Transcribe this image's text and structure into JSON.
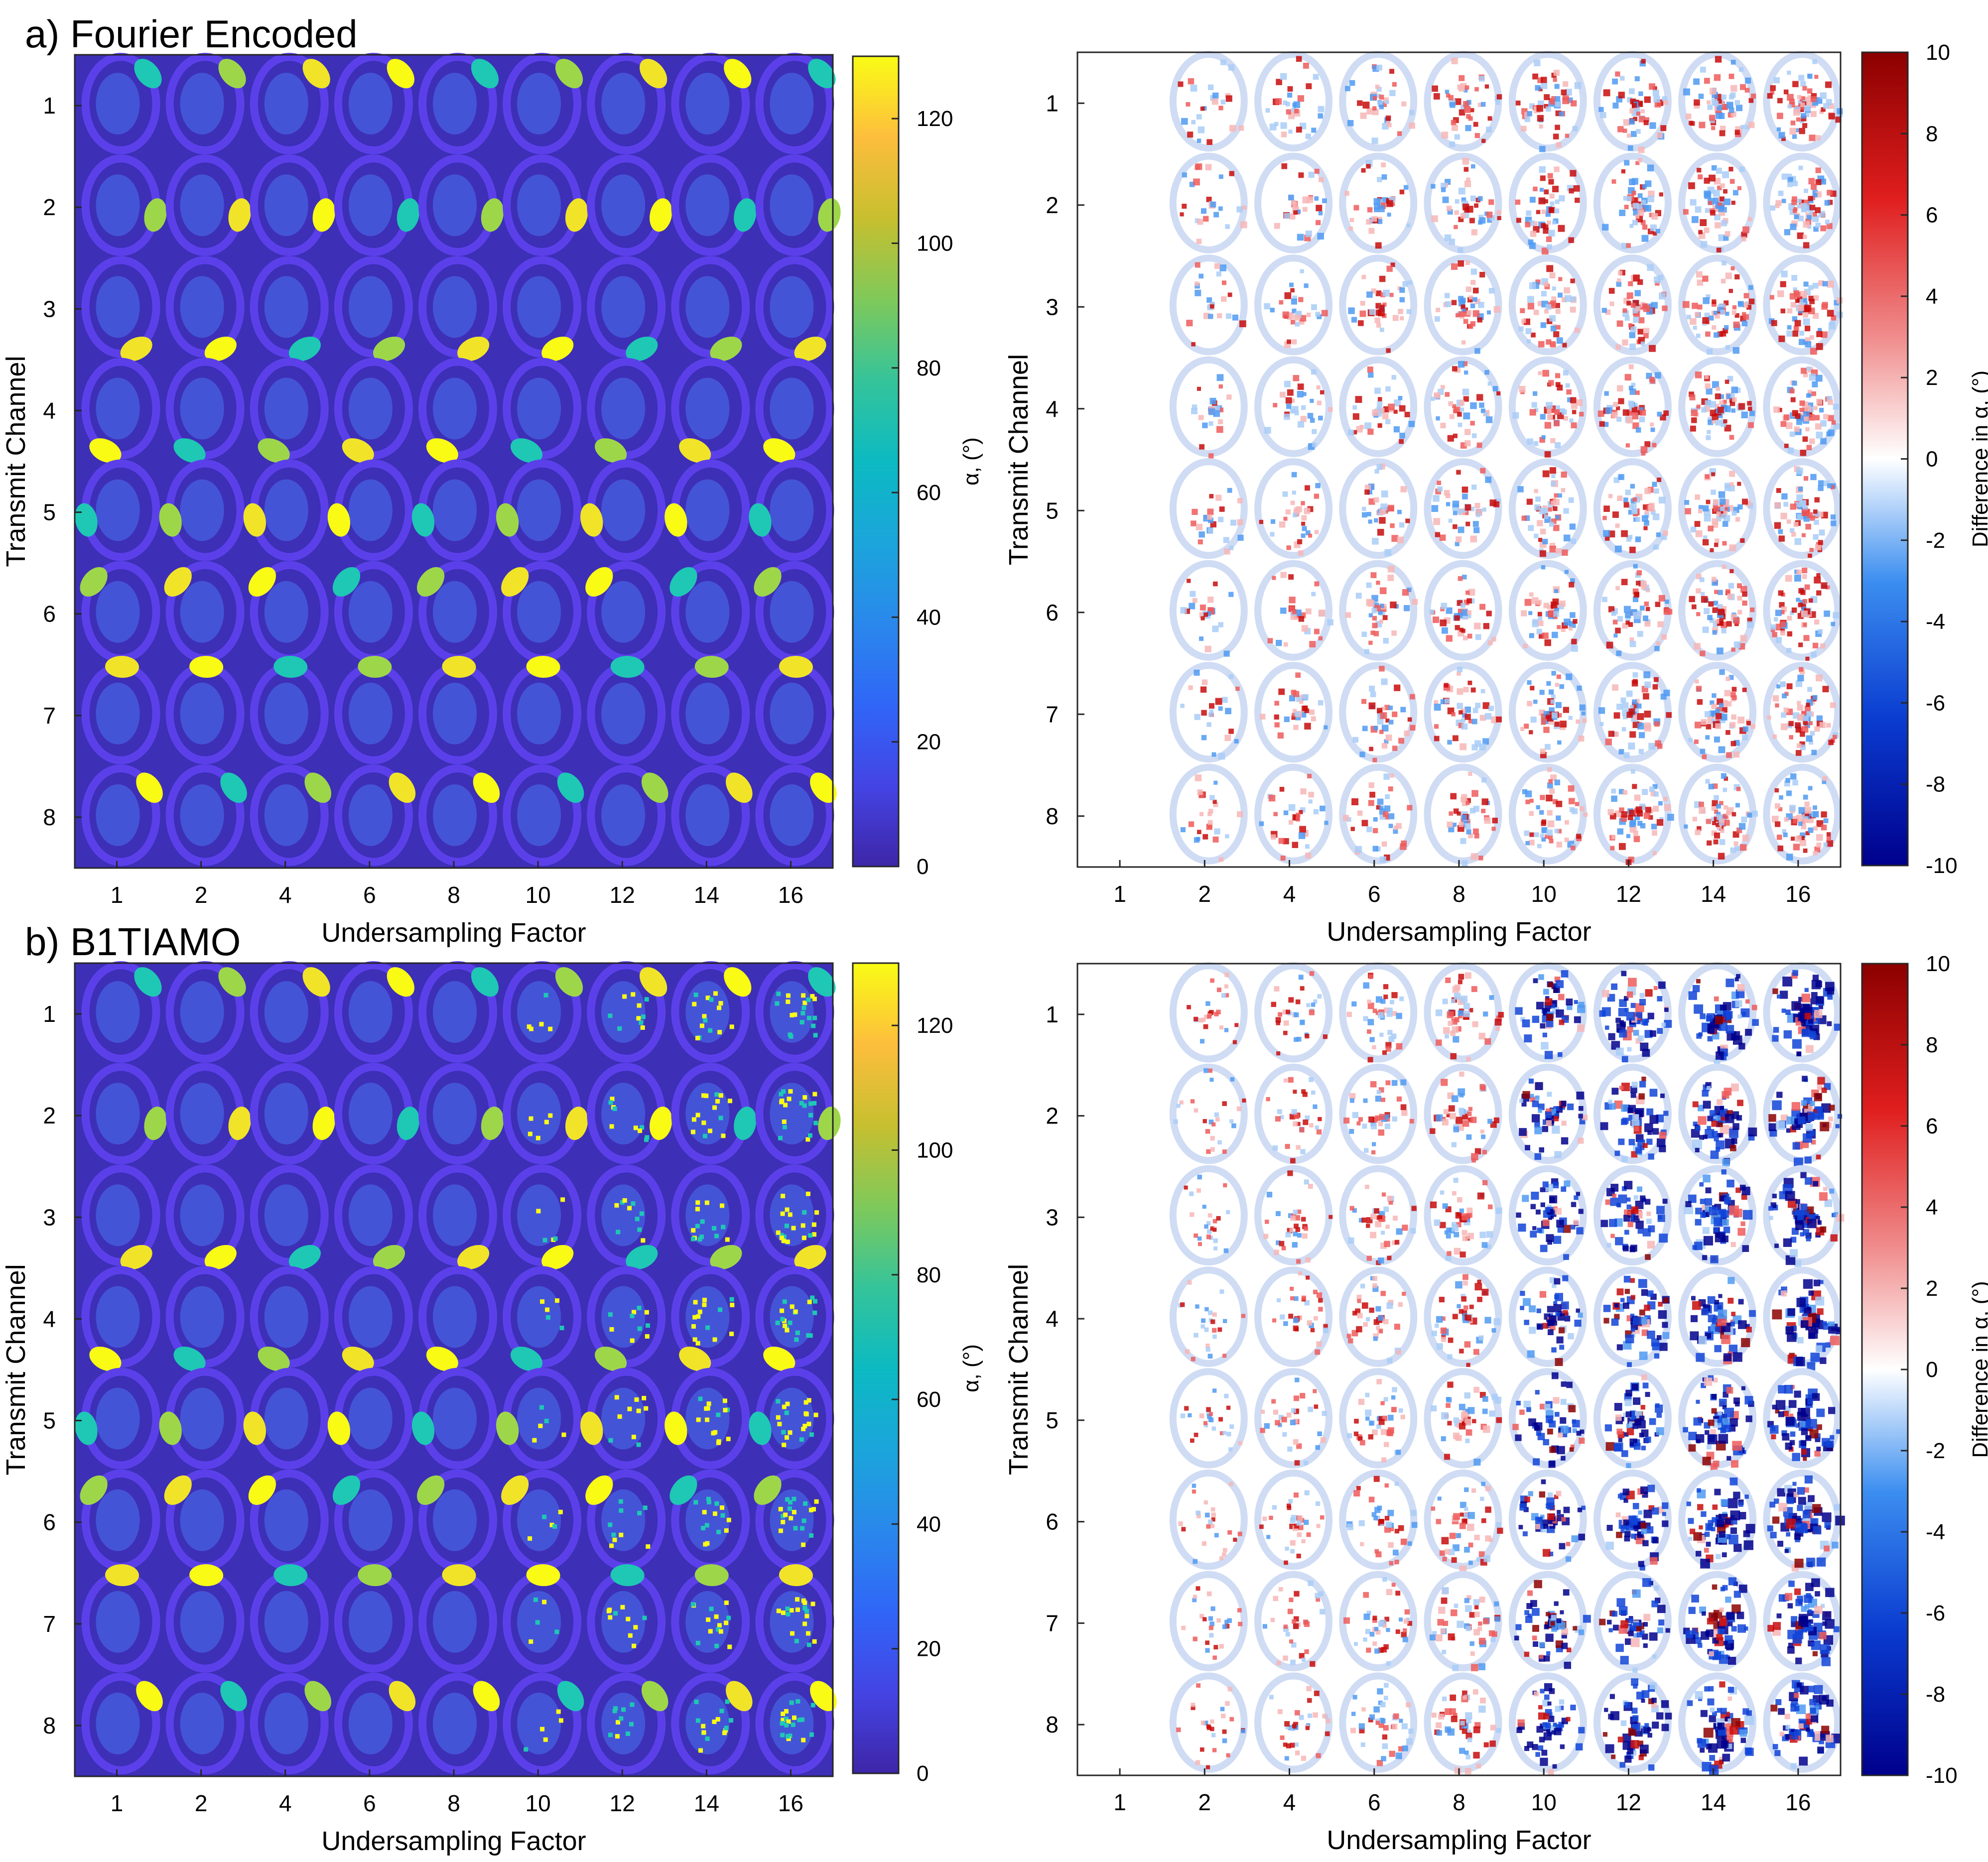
{
  "figure": {
    "panel_a_label": "a) Fourier Encoded",
    "panel_b_label": "b) B1TIAMO"
  },
  "colors": {
    "parula_low": "#3e26a8",
    "parula_high": "#f9fb15",
    "diff_low": "#00008c",
    "diff_mid": "#ffffff",
    "diff_high": "#8c0000"
  },
  "chart_data": [
    {
      "id": "a-map",
      "type": "heatmap",
      "panel": "a) Fourier Encoded",
      "xlabel": "Undersampling Factor",
      "ylabel": "Transmit Channel",
      "x_ticks": [
        "1",
        "2",
        "4",
        "6",
        "8",
        "10",
        "12",
        "14",
        "16"
      ],
      "y_ticks": [
        "1",
        "2",
        "3",
        "4",
        "5",
        "6",
        "7",
        "8"
      ],
      "colorbar": {
        "label": "α, (°)",
        "ticks": [
          "0",
          "20",
          "40",
          "60",
          "80",
          "100",
          "120"
        ],
        "range": [
          0,
          130
        ],
        "colormap": "parula"
      }
    },
    {
      "id": "a-diff",
      "type": "heatmap",
      "panel": "a) Fourier Encoded",
      "xlabel": "Undersampling Factor",
      "ylabel": "Transmit Channel",
      "x_ticks": [
        "1",
        "2",
        "4",
        "6",
        "8",
        "10",
        "12",
        "14",
        "16"
      ],
      "y_ticks": [
        "1",
        "2",
        "3",
        "4",
        "5",
        "6",
        "7",
        "8"
      ],
      "colorbar": {
        "label": "Difference in α, (°)",
        "ticks": [
          "-10",
          "-8",
          "-6",
          "-4",
          "-2",
          "0",
          "2",
          "4",
          "6",
          "8",
          "10"
        ],
        "range": [
          -10,
          10
        ],
        "colormap": "blue-white-red"
      }
    },
    {
      "id": "b-map",
      "type": "heatmap",
      "panel": "b) B1TIAMO",
      "xlabel": "Undersampling Factor",
      "ylabel": "Transmit Channel",
      "x_ticks": [
        "1",
        "2",
        "4",
        "6",
        "8",
        "10",
        "12",
        "14",
        "16"
      ],
      "y_ticks": [
        "1",
        "2",
        "3",
        "4",
        "5",
        "6",
        "7",
        "8"
      ],
      "colorbar": {
        "label": "α, (°)",
        "ticks": [
          "0",
          "20",
          "40",
          "60",
          "80",
          "100",
          "120"
        ],
        "range": [
          0,
          130
        ],
        "colormap": "parula"
      }
    },
    {
      "id": "b-diff",
      "type": "heatmap",
      "panel": "b) B1TIAMO",
      "xlabel": "Undersampling Factor",
      "ylabel": "Transmit Channel",
      "x_ticks": [
        "1",
        "2",
        "4",
        "6",
        "8",
        "10",
        "12",
        "14",
        "16"
      ],
      "y_ticks": [
        "1",
        "2",
        "3",
        "4",
        "5",
        "6",
        "7",
        "8"
      ],
      "colorbar": {
        "label": "Difference in α, (°)",
        "ticks": [
          "-10",
          "-8",
          "-6",
          "-4",
          "-2",
          "0",
          "2",
          "4",
          "6",
          "8",
          "10"
        ],
        "range": [
          -10,
          10
        ],
        "colormap": "blue-white-red"
      }
    }
  ]
}
